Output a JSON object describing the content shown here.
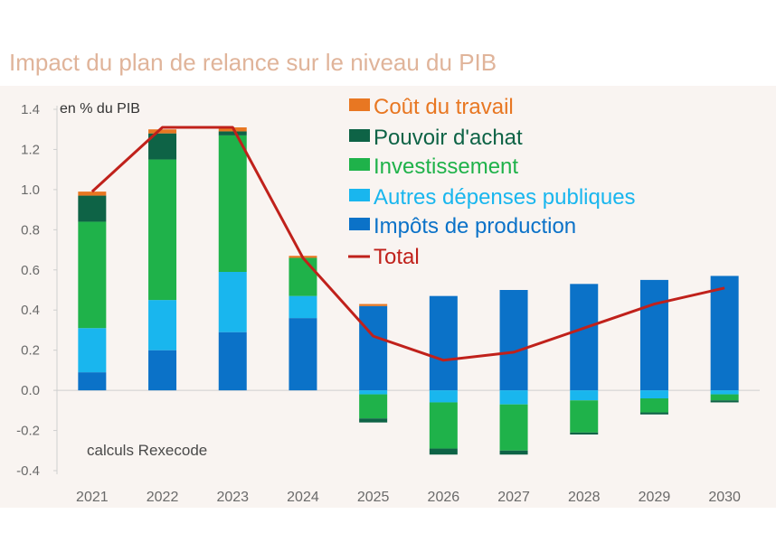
{
  "title": "Impact du plan de relance sur le niveau du PIB",
  "unit_note": "en % du PIB",
  "source_note": "calculs Rexecode",
  "chart_data": {
    "type": "bar",
    "stacked": true,
    "title": "Impact du plan de relance sur le niveau du PIB",
    "xlabel": "",
    "ylabel": "en % du PIB",
    "categories": [
      "2021",
      "2022",
      "2023",
      "2024",
      "2025",
      "2026",
      "2027",
      "2028",
      "2029",
      "2030"
    ],
    "ylim": [
      -0.4,
      1.4
    ],
    "yticks": [
      "1.4",
      "1.2",
      "1.0",
      "0.8",
      "0.6",
      "0.4",
      "0.2",
      "0.0",
      "-0.2",
      "-0.4"
    ],
    "grid": false,
    "legend_position": "top-right",
    "series": [
      {
        "name": "Coût du travail",
        "color": "#e87722",
        "kind": "bar",
        "values": [
          0.02,
          0.02,
          0.02,
          0.01,
          0.01,
          0.0,
          0.0,
          0.0,
          0.0,
          0.0
        ]
      },
      {
        "name": "Pouvoir d'achat",
        "color": "#0e6346",
        "kind": "bar",
        "values": [
          0.13,
          0.13,
          0.02,
          0.0,
          -0.02,
          -0.03,
          -0.02,
          -0.01,
          -0.01,
          -0.01
        ]
      },
      {
        "name": "Investissement",
        "color": "#1fb24a",
        "kind": "bar",
        "values": [
          0.53,
          0.7,
          0.68,
          0.19,
          -0.12,
          -0.23,
          -0.23,
          -0.16,
          -0.07,
          -0.03
        ]
      },
      {
        "name": "Autres dépenses publiques",
        "color": "#19b6ee",
        "kind": "bar",
        "values": [
          0.22,
          0.25,
          0.3,
          0.11,
          -0.02,
          -0.06,
          -0.07,
          -0.05,
          -0.04,
          -0.02
        ]
      },
      {
        "name": "Impôts de production",
        "color": "#0b72c8",
        "kind": "bar",
        "values": [
          0.09,
          0.2,
          0.29,
          0.36,
          0.42,
          0.47,
          0.5,
          0.53,
          0.55,
          0.57
        ]
      },
      {
        "name": "Total",
        "color": "#c0211b",
        "kind": "line",
        "values": [
          0.99,
          1.31,
          1.31,
          0.66,
          0.27,
          0.15,
          0.19,
          0.31,
          0.43,
          0.51
        ]
      }
    ]
  }
}
